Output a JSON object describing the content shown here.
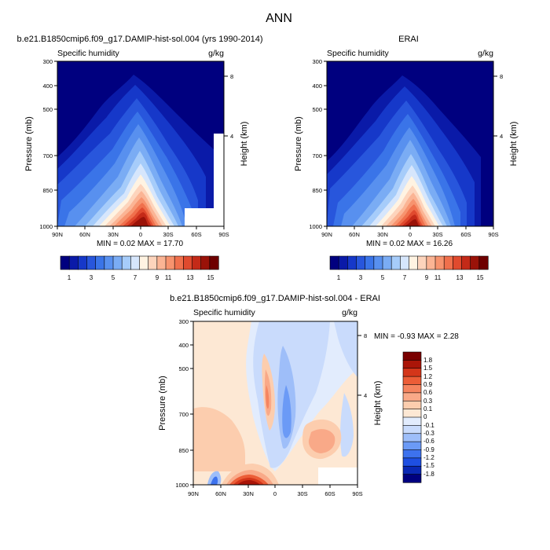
{
  "page_title": "ANN",
  "panels": [
    {
      "title": "b.e21.B1850cmip6.f09_g17.DAMIP-hist-sol.004 (yrs 1990-2014)",
      "left_label": "Specific humidity",
      "right_label": "g/kg",
      "minmax": "MIN =  0.02  MAX = 17.70"
    },
    {
      "title": "ERAI",
      "left_label": "Specific humidity",
      "right_label": "g/kg",
      "minmax": "MIN =  0.02  MAX = 16.26"
    },
    {
      "title": "b.e21.B1850cmip6.f09_g17.DAMIP-hist-sol.004 - ERAI",
      "left_label": "Specific humidity",
      "right_label": "g/kg",
      "minmax": "MIN = -0.93  MAX =   2.28"
    }
  ],
  "colors": {
    "abs_palette": [
      "#00007f",
      "#0a1aa8",
      "#1638c9",
      "#2856dc",
      "#3a74e8",
      "#5890ef",
      "#7aacf4",
      "#a6ccfa",
      "#d6e6fc",
      "#fff3e2",
      "#fdd4bc",
      "#fbb494",
      "#f7936e",
      "#f0704c",
      "#e04a2e",
      "#c42a18",
      "#9a1208",
      "#6e0000"
    ],
    "diff_palette": [
      "#00007f",
      "#0a28b4",
      "#1e4fe2",
      "#3d72ee",
      "#6b9af6",
      "#9ebef9",
      "#c9dbfc",
      "#e2ecfd",
      "#fde8d4",
      "#fccdae",
      "#f9a988",
      "#f5845f",
      "#ec5d37",
      "#d4361a",
      "#aa1508",
      "#7a0000"
    ]
  },
  "chart_data": [
    {
      "type": "contour",
      "title": "b.e21.B1850cmip6.f09_g17.DAMIP-hist-sol.004 (yrs 1990-2014)",
      "variable": "Specific humidity",
      "units": "g/kg",
      "x_ticks": [
        "90N",
        "60N",
        "30N",
        "0",
        "30S",
        "60S",
        "90S"
      ],
      "xlim": [
        90,
        -90
      ],
      "ylabel": "Pressure (mb)",
      "y_ticks": [
        "300",
        "400",
        "500",
        "700",
        "850",
        "1000"
      ],
      "ylim": [
        1000,
        300
      ],
      "y_scale": "log",
      "y2label": "Height (km)",
      "y2_ticks": [
        "8",
        "4"
      ],
      "min": 0.02,
      "max": 17.7,
      "colorbar_labels": [
        "1",
        "3",
        "5",
        "7",
        "9",
        "11",
        "13",
        "15"
      ],
      "surface_mask": "white region near 60S-90S below ~900 mb"
    },
    {
      "type": "contour",
      "title": "ERAI",
      "variable": "Specific humidity",
      "units": "g/kg",
      "x_ticks": [
        "90N",
        "60N",
        "30N",
        "0",
        "30S",
        "60S",
        "90S"
      ],
      "xlim": [
        90,
        -90
      ],
      "ylabel": "Pressure (mb)",
      "y_ticks": [
        "300",
        "400",
        "500",
        "700",
        "850",
        "1000"
      ],
      "ylim": [
        1000,
        300
      ],
      "y_scale": "log",
      "y2label": "Height (km)",
      "y2_ticks": [
        "8",
        "4"
      ],
      "min": 0.02,
      "max": 16.26,
      "colorbar_labels": [
        "1",
        "3",
        "5",
        "7",
        "9",
        "11",
        "13",
        "15"
      ]
    },
    {
      "type": "contour",
      "title": "b.e21.B1850cmip6.f09_g17.DAMIP-hist-sol.004 - ERAI",
      "variable": "Specific humidity",
      "units": "g/kg",
      "x_ticks": [
        "90N",
        "60N",
        "30N",
        "0",
        "30S",
        "60S",
        "90S"
      ],
      "xlim": [
        90,
        -90
      ],
      "ylabel": "Pressure (mb)",
      "y_ticks": [
        "300",
        "400",
        "500",
        "700",
        "850",
        "1000"
      ],
      "ylim": [
        1000,
        300
      ],
      "y_scale": "log",
      "y2label": "Height (km)",
      "y2_ticks": [
        "8",
        "4"
      ],
      "min": -0.93,
      "max": 2.28,
      "colorbar_labels": [
        "1.8",
        "1.5",
        "1.2",
        "0.9",
        "0.6",
        "0.3",
        "0.1",
        "0",
        "-0.1",
        "-0.3",
        "-0.6",
        "-0.9",
        "-1.2",
        "-1.5",
        "-1.8"
      ]
    }
  ]
}
